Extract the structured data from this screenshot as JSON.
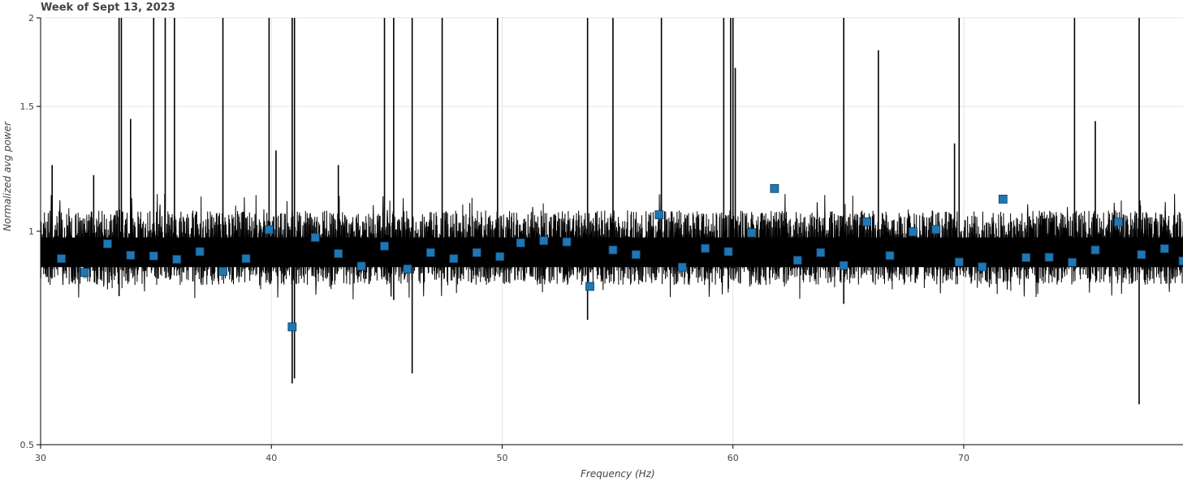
{
  "chart_data": {
    "type": "line",
    "title": "Week of Sept 13, 2023",
    "xlabel": "Frequency (Hz)",
    "ylabel": "Normalized avg power",
    "yscale": "log",
    "xlim": [
      30,
      79.5
    ],
    "ylim": [
      0.5,
      2
    ],
    "grid": true,
    "x_ticks": [
      30,
      40,
      50,
      60,
      70
    ],
    "y_ticks": [
      0.5,
      1,
      1.5,
      2
    ],
    "series": [
      {
        "kind": "line",
        "color": "#000000",
        "baseline": 0.94,
        "noise_band": [
          0.84,
          1.07
        ],
        "spikes": [
          {
            "x": 30.5,
            "y": 1.24
          },
          {
            "x": 32.3,
            "y": 1.2
          },
          {
            "x": 33.4,
            "y": 2.0
          },
          {
            "x": 33.5,
            "y": 2.0
          },
          {
            "x": 33.9,
            "y": 1.44
          },
          {
            "x": 34.9,
            "y": 2.0
          },
          {
            "x": 35.4,
            "y": 2.0
          },
          {
            "x": 35.8,
            "y": 2.0
          },
          {
            "x": 37.9,
            "y": 2.0
          },
          {
            "x": 39.9,
            "y": 2.0
          },
          {
            "x": 40.2,
            "y": 1.3
          },
          {
            "x": 40.9,
            "y": 2.0
          },
          {
            "x": 41.0,
            "y": 2.0
          },
          {
            "x": 42.9,
            "y": 1.24
          },
          {
            "x": 44.9,
            "y": 2.0
          },
          {
            "x": 45.3,
            "y": 2.0
          },
          {
            "x": 46.1,
            "y": 2.0
          },
          {
            "x": 47.4,
            "y": 2.0
          },
          {
            "x": 49.8,
            "y": 2.0
          },
          {
            "x": 53.7,
            "y": 2.0
          },
          {
            "x": 54.8,
            "y": 2.0
          },
          {
            "x": 56.9,
            "y": 2.0
          },
          {
            "x": 59.6,
            "y": 2.0
          },
          {
            "x": 59.9,
            "y": 2.0
          },
          {
            "x": 60.0,
            "y": 2.0
          },
          {
            "x": 60.1,
            "y": 1.7
          },
          {
            "x": 64.8,
            "y": 2.0
          },
          {
            "x": 66.3,
            "y": 1.8
          },
          {
            "x": 69.6,
            "y": 1.33
          },
          {
            "x": 69.8,
            "y": 2.0
          },
          {
            "x": 74.8,
            "y": 2.0
          },
          {
            "x": 75.7,
            "y": 1.43
          },
          {
            "x": 77.6,
            "y": 2.0
          }
        ],
        "dips": [
          {
            "x": 33.4,
            "y": 0.81
          },
          {
            "x": 40.9,
            "y": 0.61
          },
          {
            "x": 41.0,
            "y": 0.62
          },
          {
            "x": 45.3,
            "y": 0.8
          },
          {
            "x": 46.1,
            "y": 0.63
          },
          {
            "x": 53.7,
            "y": 0.75
          },
          {
            "x": 59.8,
            "y": 0.83
          },
          {
            "x": 64.8,
            "y": 0.79
          },
          {
            "x": 77.6,
            "y": 0.57
          }
        ]
      },
      {
        "kind": "markers",
        "marker": "square",
        "color": "#1f77b4",
        "x": [
          30.9,
          31.9,
          32.9,
          33.9,
          34.9,
          35.9,
          36.9,
          37.9,
          38.9,
          39.9,
          40.9,
          41.9,
          42.9,
          43.9,
          44.9,
          45.9,
          46.9,
          47.9,
          48.9,
          49.9,
          50.8,
          51.8,
          52.8,
          53.8,
          54.8,
          55.8,
          56.8,
          57.8,
          58.8,
          59.8,
          60.8,
          61.8,
          62.8,
          63.8,
          64.8,
          65.8,
          66.8,
          67.8,
          68.8,
          69.8,
          70.8,
          71.7,
          72.7,
          73.7,
          74.7,
          75.7,
          76.7,
          77.7,
          78.7,
          79.5
        ],
        "y": [
          0.915,
          0.875,
          0.96,
          0.925,
          0.923,
          0.913,
          0.936,
          0.878,
          0.915,
          1.005,
          0.733,
          0.98,
          0.93,
          0.893,
          0.953,
          0.885,
          0.933,
          0.915,
          0.933,
          0.921,
          0.963,
          0.97,
          0.966,
          0.836,
          0.941,
          0.927,
          1.055,
          0.89,
          0.946,
          0.936,
          0.995,
          1.149,
          0.91,
          0.933,
          0.895,
          1.031,
          0.924,
          0.998,
          1.006,
          0.905,
          0.891,
          1.11,
          0.918,
          0.919,
          0.904,
          0.941,
          1.03,
          0.927,
          0.945,
          0.908
        ]
      }
    ]
  }
}
